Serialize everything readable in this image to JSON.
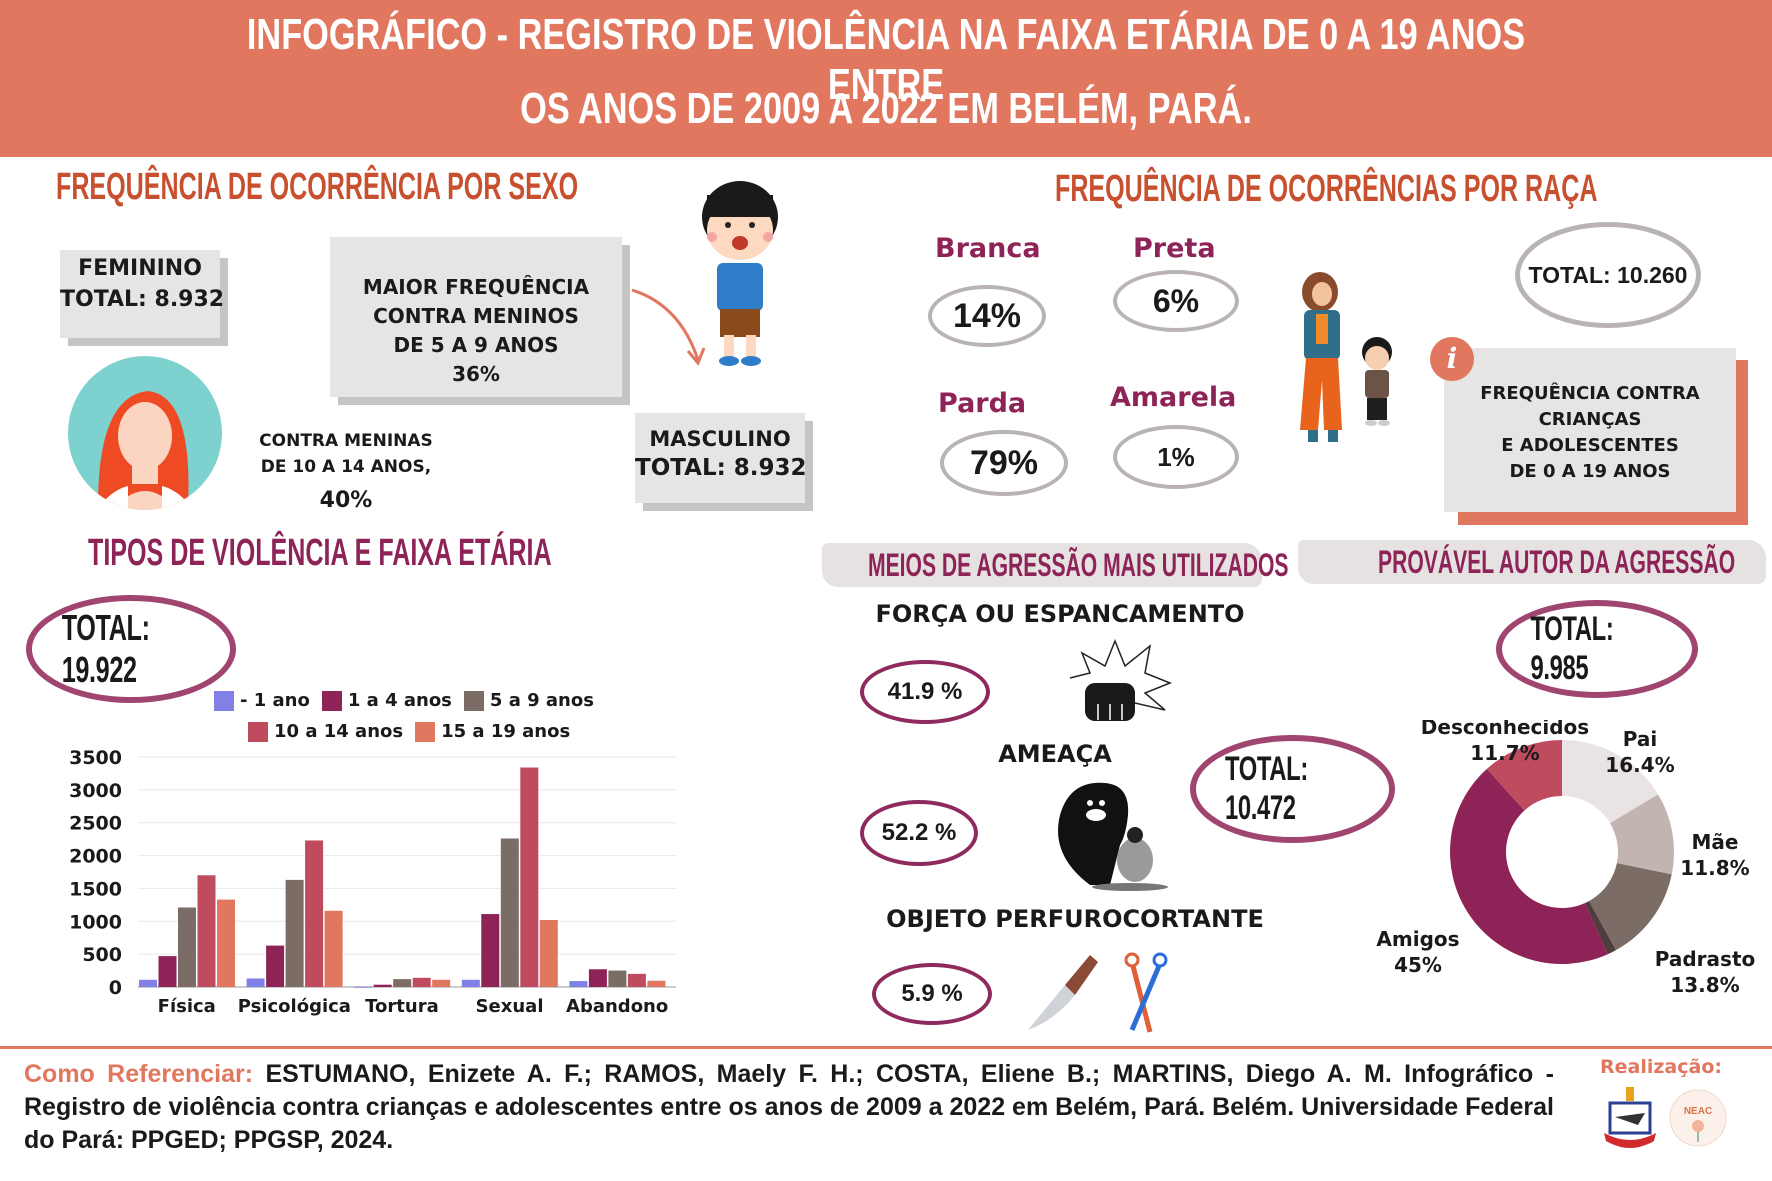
{
  "header": {
    "title_line1": "INFOGRÁFICO - REGISTRO DE VIOLÊNCIA NA FAIXA ETÁRIA DE 0 A 19 ANOS ENTRE",
    "title_line2": "OS ANOS DE 2009 A 2022 EM BELÉM, PARÁ."
  },
  "colors": {
    "header_bg": "#e0775e",
    "section_orange": "#c8502f",
    "section_plum": "#8d2357",
    "series": [
      "#8080e6",
      "#8d2357",
      "#7c6c66",
      "#bf4b5e",
      "#e0775e"
    ]
  },
  "sexo": {
    "title": "FREQUÊNCIA DE OCORRÊNCIA POR SEXO",
    "feminino_label": "FEMININO",
    "feminino_total": "TOTAL: 8.932",
    "meninos_line1": "MAIOR FREQUÊNCIA",
    "meninos_line2": "CONTRA MENINOS",
    "meninos_line3": "DE 5 A 9 ANOS",
    "meninos_pct": "36%",
    "meninas_line1": "CONTRA MENINAS",
    "meninas_line2": "DE 10 A 14 ANOS,",
    "meninas_pct": "40%",
    "masculino_label": "MASCULINO",
    "masculino_total": "TOTAL: 8.932"
  },
  "raca": {
    "title": "FREQUÊNCIA DE OCORRÊNCIAS POR RAÇA",
    "items": [
      {
        "label": "Branca",
        "value": "14%"
      },
      {
        "label": "Preta",
        "value": "6%"
      },
      {
        "label": "Parda",
        "value": "79%"
      },
      {
        "label": "Amarela",
        "value": "1%"
      }
    ],
    "total": "TOTAL: 10.260",
    "info_line1": "FREQUÊNCIA CONTRA",
    "info_line2": "CRIANÇAS",
    "info_line3": "E ADOLESCENTES",
    "info_line4": "DE 0 A 19 ANOS"
  },
  "tipos": {
    "title": "TIPOS DE VIOLÊNCIA E FAIXA ETÁRIA",
    "total": "TOTAL: 19.922"
  },
  "meios": {
    "title": "MEIOS DE AGRESSÃO MAIS UTILIZADOS",
    "items": [
      {
        "label": "FORÇA OU ESPANCAMENTO",
        "value": "41.9 %"
      },
      {
        "label": "AMEAÇA",
        "value": "52.2 %"
      },
      {
        "label": "OBJETO PERFUROCORTANTE",
        "value": "5.9 %"
      }
    ],
    "total": "TOTAL: 10.472"
  },
  "autor": {
    "title": "PROVÁVEL AUTOR DA AGRESSÃO",
    "total": "TOTAL: 9.985"
  },
  "chart_data": [
    {
      "type": "bar",
      "title": "TIPOS DE VIOLÊNCIA E FAIXA ETÁRIA",
      "categories": [
        "Física",
        "Psicológica",
        "Tortura",
        "Sexual",
        "Abandono"
      ],
      "series": [
        {
          "name": "- 1 ano",
          "values": [
            110,
            130,
            5,
            110,
            90
          ]
        },
        {
          "name": "1 a 4 anos",
          "values": [
            470,
            630,
            35,
            1110,
            270
          ]
        },
        {
          "name": "5 a 9 anos",
          "values": [
            1210,
            1630,
            120,
            2260,
            250
          ]
        },
        {
          "name": "10 a 14 anos",
          "values": [
            1700,
            2230,
            140,
            3340,
            200
          ]
        },
        {
          "name": "15 a 19 anos",
          "values": [
            1330,
            1160,
            110,
            1020,
            95
          ]
        }
      ],
      "yticks": [
        "0",
        "500",
        "1000",
        "1500",
        "2000",
        "2500",
        "3000",
        "3500"
      ],
      "ylim": [
        0,
        3500
      ],
      "xlabel": "",
      "ylabel": "",
      "grid": true,
      "legend": "top"
    },
    {
      "type": "pie",
      "title": "PROVÁVEL AUTOR DA AGRESSÃO",
      "donut": true,
      "slices": [
        {
          "label": "Pai",
          "value": 16.4,
          "display": "16.4%",
          "color": "#e9e3e3"
        },
        {
          "label": "Mãe",
          "value": 11.8,
          "display": "11.8%",
          "color": "#c2b4b1"
        },
        {
          "label": "Padrasto",
          "value": 13.8,
          "display": "13.8%",
          "color": "#7c6c66"
        },
        {
          "label": "",
          "value": 1.3,
          "display": "",
          "color": "#4e3d3c"
        },
        {
          "label": "Amigos",
          "value": 45,
          "display": "45%",
          "color": "#8d2357"
        },
        {
          "label": "Desconhecidos",
          "value": 11.7,
          "display": "11.7%",
          "color": "#bf4b5e"
        }
      ]
    }
  ],
  "footer": {
    "ref_lead": "Como Referenciar:",
    "ref_text": " ESTUMANO, Enizete A. F.; RAMOS, Maely F. H.; COSTA, Eliene B.; MARTINS, Diego A. M. Infográfico - Registro de violência contra crianças e adolescentes entre os anos de 2009 a 2022 em Belém, Pará. Belém. Universidade Federal do Pará: PPGED; PPGSP, 2024.",
    "realizacao": "Realização:",
    "neac_label": "NEAC"
  }
}
